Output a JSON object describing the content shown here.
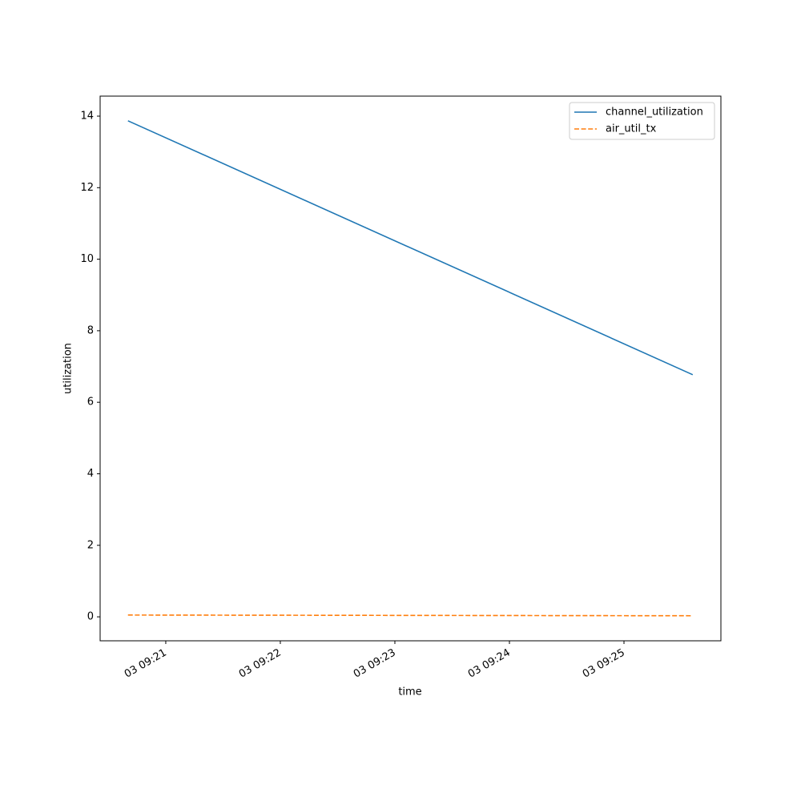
{
  "chart_data": {
    "type": "line",
    "x_label": "time",
    "y_label": "utilization",
    "x": [
      20.67,
      25.6
    ],
    "series": [
      {
        "name": "channel_utilization",
        "color": "#1f77b4",
        "dash": "solid",
        "values": [
          13.87,
          6.77
        ]
      },
      {
        "name": "air_util_tx",
        "color": "#ff7f0e",
        "dash": "dashed",
        "values": [
          0.05,
          0.03
        ]
      }
    ],
    "xlim": [
      20.427,
      25.846
    ],
    "xticks": [
      {
        "value": 21,
        "label": "03 09:21"
      },
      {
        "value": 22,
        "label": "03 09:22"
      },
      {
        "value": 23,
        "label": "03 09:23"
      },
      {
        "value": 24,
        "label": "03 09:24"
      },
      {
        "value": 25,
        "label": "03 09:25"
      }
    ],
    "ylim": [
      -0.67,
      14.56
    ],
    "yticks": [
      0,
      2,
      4,
      6,
      8,
      10,
      12,
      14
    ],
    "grid": false,
    "legend": "upper right"
  }
}
